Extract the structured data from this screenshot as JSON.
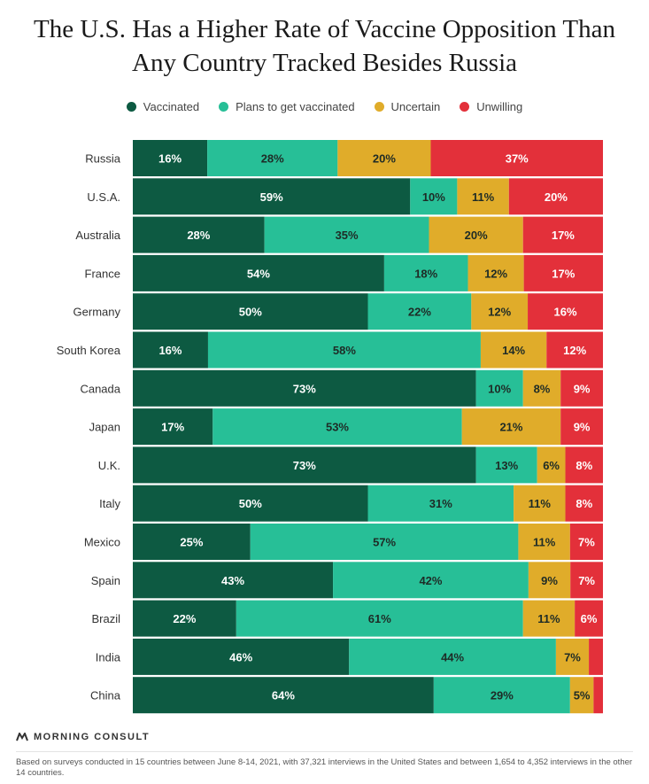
{
  "title_line1": "The U.S. Has a Higher Rate of Vaccine Opposition Than",
  "title_line2": "Any Country Tracked Besides Russia",
  "brand": "MORNING CONSULT",
  "footnote": "Based on surveys conducted in 15 countries between June 8-14, 2021, with 37,321 interviews in the United States and between 1,654 to 4,352 interviews in the other 14 countries.",
  "colors": {
    "vaccinated": "#0d5a42",
    "plans": "#27bf97",
    "uncertain": "#e0ac2a",
    "unwilling": "#e3303a"
  },
  "chart_data": {
    "type": "bar",
    "orientation": "horizontal",
    "stacked": true,
    "legend_position": "top",
    "xlim": [
      0,
      100
    ],
    "categories": [
      "Russia",
      "U.S.A.",
      "Australia",
      "France",
      "Germany",
      "South Korea",
      "Canada",
      "Japan",
      "U.K.",
      "Italy",
      "Mexico",
      "Spain",
      "Brazil",
      "India",
      "China"
    ],
    "series": [
      {
        "name": "Vaccinated",
        "color": "#0d5a42",
        "values": [
          16,
          59,
          28,
          54,
          50,
          16,
          73,
          17,
          73,
          50,
          25,
          43,
          22,
          46,
          64
        ]
      },
      {
        "name": "Plans to get vaccinated",
        "color": "#27bf97",
        "values": [
          28,
          10,
          35,
          18,
          22,
          58,
          10,
          53,
          13,
          31,
          57,
          42,
          61,
          44,
          29
        ]
      },
      {
        "name": "Uncertain",
        "color": "#e0ac2a",
        "values": [
          20,
          11,
          20,
          12,
          12,
          14,
          8,
          21,
          6,
          11,
          11,
          9,
          11,
          7,
          5
        ]
      },
      {
        "name": "Unwilling",
        "color": "#e3303a",
        "values": [
          37,
          20,
          17,
          17,
          16,
          12,
          9,
          9,
          8,
          8,
          7,
          7,
          6,
          3,
          2
        ]
      }
    ],
    "labels_hidden": [
      [
        13,
        3
      ],
      [
        14,
        3
      ]
    ]
  }
}
